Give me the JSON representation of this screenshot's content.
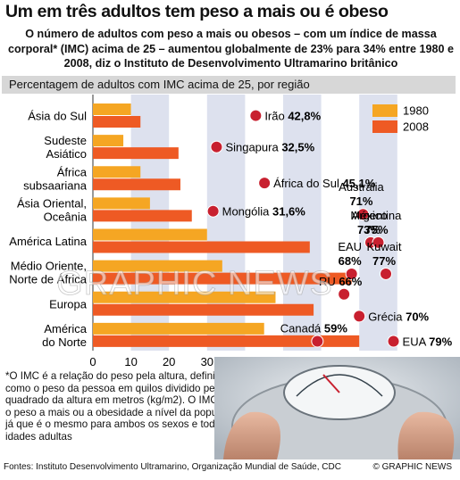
{
  "title": "Um em três adultos tem peso a mais ou é obeso",
  "subtitle": "O número de adultos com peso a mais ou obesos – com um índice de massa corporal* (IMC) acima de 25 – aumentou globalmente de 23% para 34% entre 1980 e 2008, diz o Instituto de Desenvolvimento Ultramarino britânico",
  "panel_label": "Percentagem de adultos com IMC acima de 25, por região",
  "watermark": "GRAPHIC NEWS",
  "note": "*O IMC é a relação do peso pela altura, definido como o peso da pessoa em quilos dividido pelo quadrado da altura em metros (kg/m2). O IMC mede o peso a mais ou a obesidade a nível da população já que é o mesmo para ambos os sexos e todas as idades adultas",
  "sources": "Fontes: Instituto Desenvolvimento Ultramarino, Organização Mundial de Saúde, CDC",
  "credit": "© GRAPHIC NEWS",
  "colors": {
    "bar_1980": "#f5a623",
    "bar_2008": "#ee5a24",
    "dot": "#c8202f",
    "band": "#dde1ee"
  },
  "chart_data": {
    "type": "bar",
    "orientation": "horizontal",
    "categories": [
      [
        "Ásia do Sul"
      ],
      [
        "Sudeste",
        "Asiático"
      ],
      [
        "África",
        "subsaariana"
      ],
      [
        "Ásia Oriental,",
        "Oceânia"
      ],
      [
        "América Latina"
      ],
      [
        "Médio Oriente,",
        "Norte de África"
      ],
      [
        "Europa"
      ],
      [
        "América",
        "do Norte"
      ]
    ],
    "series": [
      {
        "name": "1980",
        "values": [
          10,
          8,
          12.5,
          15,
          30,
          34,
          48,
          45
        ]
      },
      {
        "name": "2008",
        "values": [
          12.5,
          22.5,
          23,
          26,
          57,
          68,
          58,
          70
        ]
      }
    ],
    "x_ticks": [
      "0",
      "10",
      "20",
      "30",
      "40",
      "50",
      "60",
      "70",
      "80",
      "90%"
    ],
    "xlim": [
      0,
      90
    ],
    "legend": "top-right",
    "annotations": [
      {
        "country": "Irão",
        "value": "42,8%",
        "x": 42.8,
        "label_side": "right",
        "label_lines": 1
      },
      {
        "country": "Singapura",
        "value": "32,5%",
        "x": 32.5,
        "label_side": "right",
        "label_lines": 1
      },
      {
        "country": "África do Sul",
        "value": "45,1%",
        "x": 45.1,
        "label_side": "right",
        "label_lines": 1
      },
      {
        "country": "Mongólia",
        "value": "31,6%",
        "x": 31.6,
        "label_side": "right",
        "label_lines": 1
      },
      {
        "country": "Austrália",
        "value": "71%",
        "x": 71,
        "label_side": "above",
        "label_lines": 2
      },
      {
        "country": "México",
        "value": "73%",
        "x": 73,
        "label_side": "above",
        "label_lines": 2
      },
      {
        "country": "Argentina",
        "value": "75%",
        "x": 75,
        "label_side": "above",
        "label_lines": 2
      },
      {
        "country": "EAU",
        "value": "68%",
        "x": 68,
        "label_side": "above",
        "label_lines": 2
      },
      {
        "country": "Kuwait",
        "value": "77%",
        "x": 77,
        "label_side": "above",
        "label_lines": 2
      },
      {
        "country": "RU",
        "value": "66%",
        "x": 66,
        "label_side": "above",
        "label_lines": 1
      },
      {
        "country": "Grécia",
        "value": "70%",
        "x": 70,
        "label_side": "right",
        "label_lines": 1
      },
      {
        "country": "Canadá",
        "value": "59%",
        "x": 59,
        "label_side": "above",
        "label_lines": 1
      },
      {
        "country": "EUA",
        "value": "79%",
        "x": 79,
        "label_side": "right",
        "label_lines": 1
      }
    ]
  }
}
